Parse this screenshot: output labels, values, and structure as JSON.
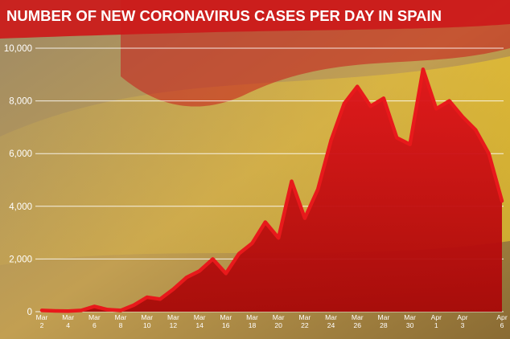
{
  "chart_data": {
    "type": "area",
    "title": "NUMBER OF NEW CORONAVIRUS CASES PER DAY IN SPAIN",
    "xlabel": "",
    "ylabel": "",
    "ylim": [
      0,
      10000
    ],
    "yticks": [
      0,
      2000,
      4000,
      6000,
      8000,
      10000
    ],
    "ytick_labels": [
      "0",
      "2,000",
      "4,000",
      "6,000",
      "8,000",
      "10,000"
    ],
    "grid": true,
    "x": [
      "Mar 2",
      "Mar 3",
      "Mar 4",
      "Mar 5",
      "Mar 6",
      "Mar 7",
      "Mar 8",
      "Mar 9",
      "Mar 10",
      "Mar 11",
      "Mar 12",
      "Mar 13",
      "Mar 14",
      "Mar 15",
      "Mar 16",
      "Mar 17",
      "Mar 18",
      "Mar 19",
      "Mar 20",
      "Mar 21",
      "Mar 22",
      "Mar 23",
      "Mar 24",
      "Mar 25",
      "Mar 26",
      "Mar 27",
      "Mar 28",
      "Mar 29",
      "Mar 30",
      "Mar 31",
      "Apr 1",
      "Apr 2",
      "Apr 3",
      "Apr 4",
      "Apr 5",
      "Apr 6"
    ],
    "xtick_labels": [
      {
        "month": "Mar",
        "day": "2"
      },
      {
        "month": "Mar",
        "day": "4"
      },
      {
        "month": "Mar",
        "day": "6"
      },
      {
        "month": "Mar",
        "day": "8"
      },
      {
        "month": "Mar",
        "day": "10"
      },
      {
        "month": "Mar",
        "day": "12"
      },
      {
        "month": "Mar",
        "day": "14"
      },
      {
        "month": "Mar",
        "day": "16"
      },
      {
        "month": "Mar",
        "day": "18"
      },
      {
        "month": "Mar",
        "day": "20"
      },
      {
        "month": "Mar",
        "day": "22"
      },
      {
        "month": "Mar",
        "day": "24"
      },
      {
        "month": "Mar",
        "day": "26"
      },
      {
        "month": "Mar",
        "day": "28"
      },
      {
        "month": "Mar",
        "day": "30"
      },
      {
        "month": "Apr",
        "day": "1"
      },
      {
        "month": "Apr",
        "day": "3"
      },
      {
        "month": "Apr",
        "day": "6"
      }
    ],
    "series": [
      {
        "values": [
          50,
          30,
          20,
          50,
          200,
          80,
          50,
          250,
          550,
          480,
          850,
          1300,
          1550,
          2000,
          1450,
          2200,
          2600,
          3400,
          2800,
          4950,
          3550,
          4650,
          6500,
          7900,
          8550,
          7800,
          8100,
          6600,
          6350,
          9200,
          7700,
          8000,
          7400,
          6900,
          6000,
          4200
        ]
      }
    ],
    "colors": {
      "fill": "#d10d0d",
      "line": "#e8191b",
      "gridline": "#ffffff",
      "title_bar": "#cc1a1a",
      "text": "#ffffff"
    }
  }
}
